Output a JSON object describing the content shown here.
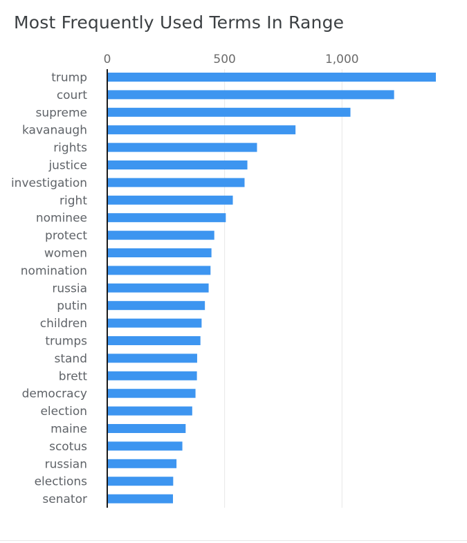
{
  "page": {
    "title": "Most Frequently Used Terms In Range"
  },
  "colors": {
    "bar": "#3d95f0",
    "axis": "#1a1a1a",
    "grid": "#e6e6e6"
  },
  "chart_data": {
    "type": "bar",
    "orientation": "horizontal",
    "title": "Most Frequently Used Terms In Range",
    "xlabel": "",
    "ylabel": "",
    "xlim": [
      0,
      1400
    ],
    "x_ticks": [
      0,
      500,
      1000
    ],
    "x_tick_labels": [
      "0",
      "500",
      "1,000"
    ],
    "x_axis_position": "top",
    "grid": true,
    "legend": "none",
    "categories": [
      "trump",
      "court",
      "supreme",
      "kavanaugh",
      "rights",
      "justice",
      "investigation",
      "right",
      "nominee",
      "protect",
      "women",
      "nomination",
      "russia",
      "putin",
      "children",
      "trumps",
      "stand",
      "brett",
      "democracy",
      "election",
      "maine",
      "scotus",
      "russian",
      "elections",
      "senator"
    ],
    "values": [
      1400,
      1222,
      1036,
      802,
      638,
      597,
      585,
      535,
      505,
      456,
      444,
      440,
      432,
      416,
      402,
      397,
      383,
      382,
      376,
      362,
      334,
      320,
      295,
      281,
      280
    ]
  }
}
